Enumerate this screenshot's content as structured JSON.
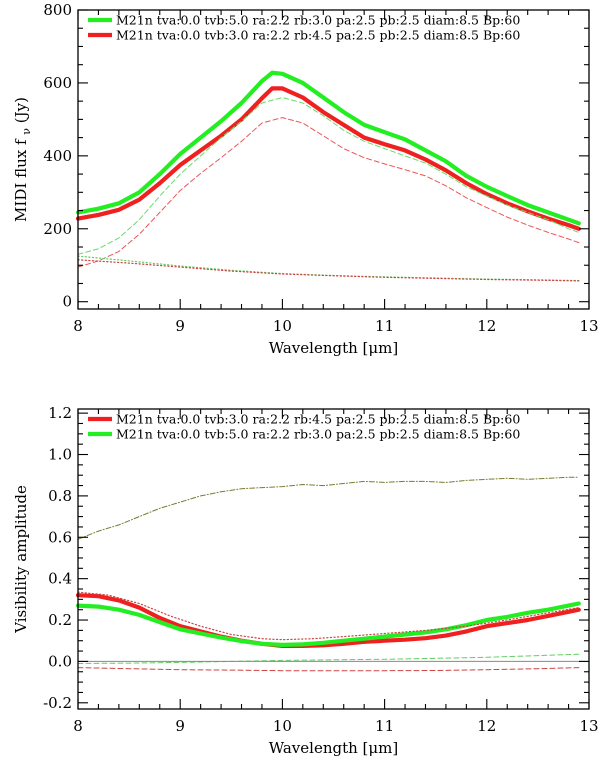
{
  "chart_data": [
    {
      "type": "line",
      "xlabel": "Wavelength [μm]",
      "ylabel": "MIDI flux f",
      "ylabel_sub": "ν",
      "ylabel_unit": " (Jy)",
      "xlim": [
        8,
        13
      ],
      "ylim": [
        -20,
        800
      ],
      "xticks": [
        8,
        9,
        10,
        11,
        12,
        13
      ],
      "yticks": [
        0,
        200,
        400,
        600,
        800
      ],
      "legend": {
        "placement": "top-left"
      },
      "series": [
        {
          "name": "M21n tva:0.0 tvb:5.0 ra:2.2 rb:3.0 pa:2.5 pb:2.5 diam:8.5 Bp:60",
          "color": "#22ee22",
          "style": "thick",
          "legend": true,
          "x": [
            8.0,
            8.2,
            8.4,
            8.6,
            8.8,
            9.0,
            9.2,
            9.4,
            9.6,
            9.8,
            9.9,
            10.0,
            10.2,
            10.4,
            10.6,
            10.8,
            11.0,
            11.2,
            11.4,
            11.6,
            11.8,
            12.0,
            12.2,
            12.4,
            12.6,
            12.8,
            12.9
          ],
          "y": [
            245,
            255,
            270,
            300,
            350,
            405,
            450,
            495,
            545,
            605,
            628,
            625,
            600,
            560,
            520,
            485,
            465,
            445,
            415,
            385,
            345,
            315,
            290,
            265,
            245,
            225,
            215
          ]
        },
        {
          "name": "M21n tva:0.0 tvb:3.0 ra:2.2 rb:4.5 pa:2.5 pb:2.5 diam:8.5 Bp:60",
          "color": "#ee2020",
          "style": "thick",
          "legend": true,
          "x": [
            8.0,
            8.2,
            8.4,
            8.6,
            8.8,
            9.0,
            9.2,
            9.4,
            9.6,
            9.8,
            9.9,
            10.0,
            10.2,
            10.4,
            10.6,
            10.8,
            11.0,
            11.2,
            11.4,
            11.6,
            11.8,
            12.0,
            12.2,
            12.4,
            12.6,
            12.8,
            12.9
          ],
          "y": [
            228,
            238,
            252,
            280,
            325,
            375,
            415,
            455,
            500,
            558,
            585,
            585,
            560,
            520,
            485,
            450,
            432,
            415,
            390,
            360,
            325,
            295,
            270,
            248,
            228,
            210,
            200
          ]
        },
        {
          "color": "#66dd66",
          "style": "dashed",
          "legend": false,
          "x": [
            8.0,
            8.2,
            8.4,
            8.6,
            8.8,
            9.0,
            9.2,
            9.4,
            9.6,
            9.8,
            10.0,
            10.2,
            10.4,
            10.6,
            10.8,
            11.0,
            11.2,
            11.4,
            11.6,
            11.8,
            12.0,
            12.2,
            12.4,
            12.6,
            12.8,
            12.9
          ],
          "y": [
            130,
            145,
            175,
            225,
            290,
            350,
            400,
            450,
            495,
            545,
            560,
            545,
            510,
            470,
            440,
            420,
            400,
            380,
            350,
            315,
            290,
            265,
            245,
            225,
            200,
            190
          ]
        },
        {
          "color": "#ee5555",
          "style": "dashed",
          "legend": false,
          "x": [
            8.0,
            8.2,
            8.4,
            8.6,
            8.8,
            9.0,
            9.2,
            9.4,
            9.6,
            9.8,
            10.0,
            10.2,
            10.4,
            10.6,
            10.8,
            11.0,
            11.2,
            11.4,
            11.6,
            11.8,
            12.0,
            12.2,
            12.4,
            12.6,
            12.8,
            12.9
          ],
          "y": [
            95,
            112,
            138,
            185,
            245,
            305,
            352,
            395,
            440,
            490,
            505,
            490,
            455,
            420,
            395,
            378,
            362,
            345,
            318,
            285,
            258,
            232,
            210,
            190,
            172,
            162
          ]
        },
        {
          "color": "#66cc66",
          "style": "dotted",
          "legend": false,
          "x": [
            8.0,
            8.5,
            9.0,
            9.5,
            10.0,
            10.5,
            11.0,
            11.5,
            12.0,
            12.5,
            12.9
          ],
          "y": [
            125,
            112,
            98,
            86,
            77,
            72,
            68,
            65,
            62,
            60,
            58
          ]
        },
        {
          "color": "#cc4444",
          "style": "dotted",
          "legend": false,
          "x": [
            8.0,
            8.5,
            9.0,
            9.5,
            10.0,
            10.5,
            11.0,
            11.5,
            12.0,
            12.5,
            12.9
          ],
          "y": [
            115,
            106,
            95,
            84,
            76,
            71,
            67,
            64,
            61,
            59,
            57
          ]
        }
      ]
    },
    {
      "type": "line",
      "xlabel": "Wavelength [μm]",
      "ylabel": "Visibility amplitude",
      "xlim": [
        8,
        13
      ],
      "ylim": [
        -0.23,
        1.22
      ],
      "xticks": [
        8,
        9,
        10,
        11,
        12,
        13
      ],
      "yticks": [
        -0.2,
        0.0,
        0.2,
        0.4,
        0.6,
        0.8,
        1.0,
        1.2
      ],
      "ytick_labels": [
        "-0.2",
        "0.0",
        "0.2",
        "0.4",
        "0.6",
        "0.8",
        "1.0",
        "1.2"
      ],
      "legend": {
        "placement": "top-left"
      },
      "series": [
        {
          "name": "M21n tva:0.0 tvb:3.0 ra:2.2 rb:4.5 pa:2.5 pb:2.5 diam:8.5 Bp:60",
          "color": "#ee2020",
          "style": "thick",
          "legend": true,
          "x": [
            8.0,
            8.2,
            8.4,
            8.6,
            8.8,
            9.0,
            9.2,
            9.4,
            9.6,
            9.8,
            10.0,
            10.2,
            10.4,
            10.6,
            10.8,
            11.0,
            11.2,
            11.4,
            11.6,
            11.8,
            12.0,
            12.2,
            12.4,
            12.6,
            12.8,
            12.9
          ],
          "y": [
            0.32,
            0.315,
            0.295,
            0.26,
            0.21,
            0.17,
            0.145,
            0.12,
            0.1,
            0.085,
            0.075,
            0.075,
            0.078,
            0.085,
            0.095,
            0.1,
            0.105,
            0.112,
            0.125,
            0.145,
            0.17,
            0.185,
            0.2,
            0.22,
            0.24,
            0.25
          ]
        },
        {
          "name": "M21n tva:0.0 tvb:5.0 ra:2.2 rb:3.0 pa:2.5 pb:2.5 diam:8.5 Bp:60",
          "color": "#22ee22",
          "style": "thick",
          "legend": true,
          "x": [
            8.0,
            8.2,
            8.4,
            8.6,
            8.8,
            9.0,
            9.2,
            9.4,
            9.6,
            9.8,
            10.0,
            10.2,
            10.4,
            10.6,
            10.8,
            11.0,
            11.2,
            11.4,
            11.6,
            11.8,
            12.0,
            12.2,
            12.4,
            12.6,
            12.8,
            12.9
          ],
          "y": [
            0.27,
            0.265,
            0.25,
            0.225,
            0.19,
            0.155,
            0.135,
            0.115,
            0.098,
            0.085,
            0.08,
            0.082,
            0.09,
            0.1,
            0.11,
            0.12,
            0.13,
            0.14,
            0.155,
            0.175,
            0.2,
            0.215,
            0.235,
            0.25,
            0.27,
            0.28
          ]
        },
        {
          "color": "#cc4444",
          "style": "dotted",
          "legend": false,
          "x": [
            8.0,
            8.3,
            8.6,
            8.9,
            9.2,
            9.5,
            9.8,
            10.0,
            10.3,
            10.6,
            11.0,
            11.4,
            11.8,
            12.2,
            12.6,
            12.9
          ],
          "y": [
            0.335,
            0.32,
            0.28,
            0.22,
            0.17,
            0.13,
            0.11,
            0.105,
            0.11,
            0.12,
            0.135,
            0.15,
            0.17,
            0.2,
            0.235,
            0.26
          ]
        },
        {
          "color": "#7a7a30",
          "style": "dashdot",
          "legend": false,
          "x": [
            8.0,
            8.2,
            8.4,
            8.6,
            8.8,
            9.0,
            9.2,
            9.4,
            9.6,
            9.8,
            10.0,
            10.2,
            10.4,
            10.6,
            10.8,
            11.0,
            11.2,
            11.4,
            11.6,
            11.8,
            12.0,
            12.2,
            12.4,
            12.6,
            12.8,
            12.9
          ],
          "y": [
            0.59,
            0.63,
            0.66,
            0.7,
            0.74,
            0.77,
            0.8,
            0.82,
            0.835,
            0.84,
            0.845,
            0.855,
            0.85,
            0.86,
            0.87,
            0.865,
            0.87,
            0.87,
            0.865,
            0.875,
            0.88,
            0.885,
            0.88,
            0.885,
            0.89,
            0.89
          ]
        },
        {
          "color": "#66cc66",
          "style": "dashed",
          "legend": false,
          "x": [
            8.0,
            8.5,
            9.0,
            9.5,
            10.0,
            10.5,
            11.0,
            11.5,
            12.0,
            12.5,
            12.9
          ],
          "y": [
            -0.01,
            -0.008,
            -0.005,
            0.0,
            0.005,
            0.008,
            0.01,
            0.015,
            0.02,
            0.028,
            0.035
          ]
        },
        {
          "color": "#cc4444",
          "style": "dashed",
          "legend": false,
          "x": [
            8.0,
            8.5,
            9.0,
            9.5,
            10.0,
            10.5,
            11.0,
            11.5,
            12.0,
            12.5,
            12.9
          ],
          "y": [
            -0.03,
            -0.035,
            -0.04,
            -0.042,
            -0.045,
            -0.045,
            -0.045,
            -0.044,
            -0.04,
            -0.035,
            -0.03
          ]
        },
        {
          "color": "#888888",
          "style": "thin",
          "legend": false,
          "x": [
            8.0,
            13.0
          ],
          "y": [
            0.0,
            0.0
          ]
        }
      ]
    }
  ]
}
